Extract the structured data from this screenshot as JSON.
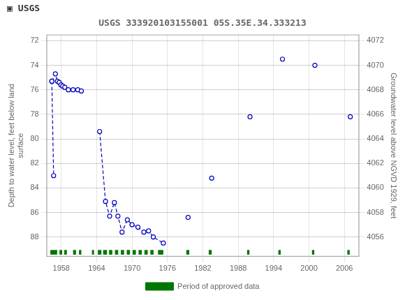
{
  "chart_data": {
    "type": "scatter",
    "title": "USGS 333920103155001 05S.35E.34.333213",
    "annotations": [
      "▣",
      "USGS"
    ],
    "ylabel": "Depth to water level, feet below land\nsurface",
    "y2label": "Groundwater level above NGVD 1929, feet",
    "xlim": [
      1955.5,
      2008.5
    ],
    "xticks": [
      1958,
      1964,
      1970,
      1976,
      1982,
      1988,
      1994,
      2000,
      2006
    ],
    "ylim": [
      89.6,
      71.5
    ],
    "yticks": [
      72,
      74,
      76,
      78,
      80,
      82,
      84,
      86,
      88
    ],
    "y2lim": [
      4054.4,
      4072.5
    ],
    "y2ticks": [
      4072,
      4070,
      4068,
      4066,
      4064,
      4062,
      4060,
      4058,
      4056
    ],
    "grid": true,
    "legend": "bottom",
    "series": [
      {
        "type": "line",
        "line_style": "dashed",
        "marker": "circle",
        "color": "#0000bb",
        "x": [
          1956.4,
          1957.0,
          1957.35,
          1957.65,
          1957.95,
          1958.25,
          1958.6,
          1959.2,
          1960.0,
          1960.8,
          1961.4
        ],
        "values": [
          75.3,
          74.7,
          75.3,
          75.4,
          75.6,
          75.7,
          75.8,
          76.0,
          76.0,
          76.0,
          76.1
        ]
      },
      {
        "type": "line",
        "line_style": "dashed",
        "marker": "circle",
        "color": "#0000bb",
        "x": [
          1956.4,
          1956.7
        ],
        "values": [
          75.3,
          83.0
        ]
      },
      {
        "type": "line",
        "line_style": "dashed",
        "marker": "circle",
        "color": "#0000bb",
        "x": [
          1964.5,
          1965.5,
          1966.2,
          1967.0,
          1967.6,
          1968.3,
          1969.2,
          1970.0,
          1971.0,
          1972.0,
          1972.8,
          1973.6,
          1975.3
        ],
        "values": [
          79.4,
          85.1,
          86.3,
          85.2,
          86.3,
          87.6,
          86.6,
          87.0,
          87.2,
          87.6,
          87.5,
          88.0,
          88.5
        ]
      },
      {
        "type": "scatter",
        "marker": "circle",
        "color": "#0000bb",
        "x": [
          1979.5,
          1983.5,
          1990.0,
          1995.5,
          2001.0,
          2007.0
        ],
        "values": [
          86.4,
          83.2,
          78.2,
          73.5,
          74.0,
          78.2
        ]
      },
      {
        "type": "intervals",
        "name": "Period of approved data",
        "color": "#007700",
        "y": 89.25,
        "height": 0.38,
        "intervals": [
          [
            1956.15,
            1.15
          ],
          [
            1957.7,
            0.45
          ],
          [
            1958.5,
            0.45
          ],
          [
            1960.0,
            0.5
          ],
          [
            1961.0,
            0.4
          ],
          [
            1963.2,
            0.35
          ],
          [
            1964.2,
            0.6
          ],
          [
            1965.1,
            0.65
          ],
          [
            1966.1,
            0.55
          ],
          [
            1967.1,
            0.55
          ],
          [
            1968.1,
            0.55
          ],
          [
            1969.1,
            0.55
          ],
          [
            1970.1,
            0.55
          ],
          [
            1971.1,
            0.55
          ],
          [
            1972.1,
            0.55
          ],
          [
            1973.1,
            0.55
          ],
          [
            1974.4,
            0.9
          ],
          [
            1979.2,
            0.5
          ],
          [
            1983.0,
            0.5
          ],
          [
            1989.5,
            0.4
          ],
          [
            1994.8,
            0.4
          ],
          [
            2000.5,
            0.4
          ],
          [
            2006.5,
            0.4
          ]
        ]
      }
    ]
  }
}
